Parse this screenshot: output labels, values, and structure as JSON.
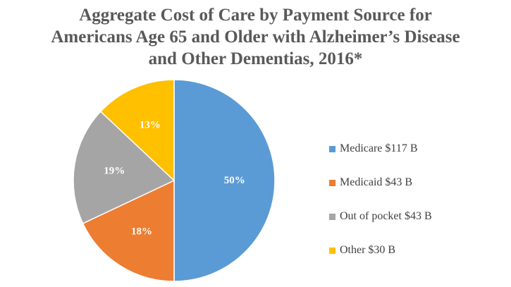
{
  "chart_data": {
    "type": "pie",
    "title_lines": [
      "Aggregate Cost of Care by Payment Source for",
      "Americans Age 65 and Older with Alzheimer’s Disease",
      "and Other Dementias, 2016*"
    ],
    "slices": [
      {
        "legend": "Medicare $117 B",
        "label": "50%",
        "percent": 50,
        "color": "#5b9bd5"
      },
      {
        "legend": "Medicaid $43 B",
        "label": "18%",
        "percent": 18,
        "color": "#ed7d31"
      },
      {
        "legend": "Out of pocket $43 B",
        "label": "19%",
        "percent": 19,
        "color": "#a5a5a5"
      },
      {
        "legend": "Other $30 B",
        "label": "13%",
        "percent": 13,
        "color": "#ffc000"
      }
    ],
    "legend_position": "right",
    "start_angle_deg": 0,
    "direction": "clockwise"
  }
}
